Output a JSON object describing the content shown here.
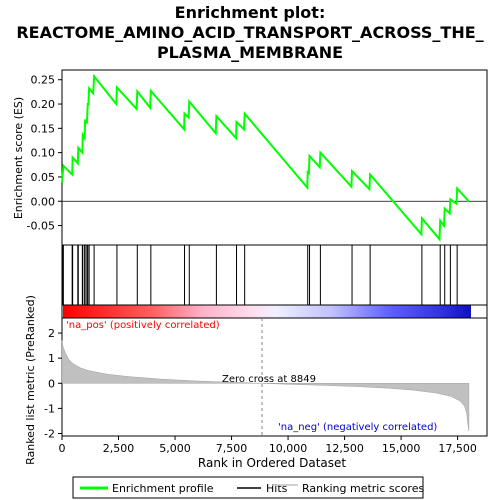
{
  "chart_data": {
    "type": "line",
    "title": "Enrichment plot: REACTOME_AMINO_ACID_TRANSPORT_ACROSS_THE_PLASMA_MEMBRANE",
    "title_lines": [
      "Enrichment plot:",
      "REACTOME_AMINO_ACID_TRANSPORT_ACROSS_THE_",
      "PLASMA_MEMBRANE"
    ],
    "top_panel": {
      "ylabel": "Enrichment score (ES)",
      "ylim": [
        -0.09,
        0.27
      ],
      "yticks": [
        -0.05,
        0.0,
        0.05,
        0.1,
        0.15,
        0.2,
        0.25
      ],
      "ytick_labels": [
        "-0.05",
        "0.00",
        "0.05",
        "0.10",
        "0.15",
        "0.20",
        "0.25"
      ],
      "grid": false,
      "series_color": "#00ff00",
      "points": [
        [
          0,
          0.038
        ],
        [
          60,
          0.073
        ],
        [
          450,
          0.055
        ],
        [
          470,
          0.09
        ],
        [
          700,
          0.078
        ],
        [
          720,
          0.11
        ],
        [
          900,
          0.1
        ],
        [
          920,
          0.136
        ],
        [
          1000,
          0.13
        ],
        [
          1020,
          0.168
        ],
        [
          1100,
          0.16
        ],
        [
          1140,
          0.202
        ],
        [
          1170,
          0.198
        ],
        [
          1200,
          0.232
        ],
        [
          1380,
          0.222
        ],
        [
          1420,
          0.257
        ],
        [
          2400,
          0.2
        ],
        [
          2430,
          0.234
        ],
        [
          3300,
          0.19
        ],
        [
          3330,
          0.226
        ],
        [
          3900,
          0.192
        ],
        [
          3930,
          0.227
        ],
        [
          5400,
          0.148
        ],
        [
          5420,
          0.18
        ],
        [
          5600,
          0.172
        ],
        [
          5630,
          0.205
        ],
        [
          6800,
          0.14
        ],
        [
          6830,
          0.175
        ],
        [
          7700,
          0.13
        ],
        [
          7720,
          0.163
        ],
        [
          8050,
          0.148
        ],
        [
          8080,
          0.18
        ],
        [
          10850,
          0.028
        ],
        [
          10870,
          0.06
        ],
        [
          10920,
          0.058
        ],
        [
          10950,
          0.093
        ],
        [
          11400,
          0.07
        ],
        [
          11430,
          0.1
        ],
        [
          12800,
          0.03
        ],
        [
          12830,
          0.062
        ],
        [
          13600,
          0.025
        ],
        [
          13630,
          0.055
        ],
        [
          15900,
          -0.068
        ],
        [
          15920,
          -0.035
        ],
        [
          16700,
          -0.078
        ],
        [
          16730,
          -0.04
        ],
        [
          16900,
          -0.05
        ],
        [
          16930,
          -0.015
        ],
        [
          17150,
          -0.025
        ],
        [
          17180,
          0.004
        ],
        [
          17450,
          -0.005
        ],
        [
          17480,
          0.026
        ],
        [
          18000,
          0.0
        ]
      ]
    },
    "hits": [
      40,
      60,
      450,
      470,
      700,
      720,
      900,
      920,
      1000,
      1020,
      1100,
      1140,
      1200,
      1420,
      2430,
      3330,
      3930,
      5420,
      5630,
      6830,
      7720,
      8080,
      10870,
      10950,
      11430,
      12830,
      13630,
      15920,
      16730,
      16930,
      17180,
      17480
    ],
    "color_bar": {
      "pos_label": "'na_pos' (positively correlated)",
      "neg_label": "'na_neg' (negatively correlated)"
    },
    "bottom_panel": {
      "ylabel": "Ranked list metric (PreRanked)",
      "xlabel": "Rank in Ordered Dataset",
      "ylim": [
        -2.1,
        2.6
      ],
      "yticks": [
        -2,
        -1,
        0,
        1,
        2
      ],
      "ytick_labels": [
        "-2",
        "-1",
        "0",
        "1",
        "2"
      ],
      "zero_cross_label": "Zero cross at 8849",
      "zero_cross": 8849,
      "metric_profile": [
        [
          0,
          1.7
        ],
        [
          50,
          1.45
        ],
        [
          150,
          1.2
        ],
        [
          300,
          0.95
        ],
        [
          500,
          0.78
        ],
        [
          800,
          0.62
        ],
        [
          1200,
          0.5
        ],
        [
          2000,
          0.36
        ],
        [
          3000,
          0.26
        ],
        [
          4500,
          0.16
        ],
        [
          6000,
          0.09
        ],
        [
          7500,
          0.04
        ],
        [
          8849,
          0.0
        ],
        [
          10000,
          -0.04
        ],
        [
          11500,
          -0.08
        ],
        [
          13000,
          -0.13
        ],
        [
          14500,
          -0.2
        ],
        [
          15500,
          -0.27
        ],
        [
          16500,
          -0.38
        ],
        [
          17200,
          -0.52
        ],
        [
          17600,
          -0.7
        ],
        [
          17800,
          -0.9
        ],
        [
          17900,
          -1.2
        ],
        [
          17950,
          -1.6
        ],
        [
          18000,
          -1.9
        ]
      ]
    },
    "xlim": [
      0,
      18800
    ],
    "xticks": [
      0,
      2500,
      5000,
      7500,
      10000,
      12500,
      15000,
      17500
    ],
    "xtick_labels": [
      "0",
      "2,500",
      "5,000",
      "7,500",
      "10,000",
      "12,500",
      "15,000",
      "17,500"
    ],
    "legend": {
      "placement": "bottom",
      "entries": [
        {
          "label": "Enrichment profile",
          "color": "#00ff00"
        },
        {
          "label": "Hits",
          "color": "#000000"
        },
        {
          "label": "Ranking metric scores",
          "color": "#c0c0c0"
        }
      ]
    }
  }
}
